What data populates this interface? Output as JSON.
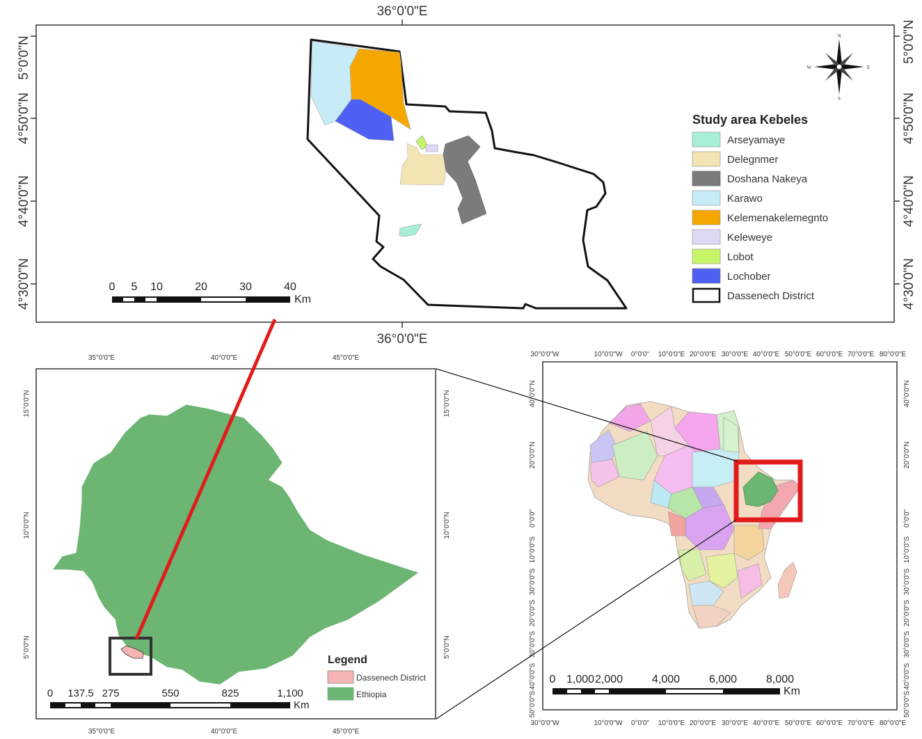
{
  "top_map": {
    "axes": {
      "top": "36°0'0\"E",
      "bottom": "36°0'0\"E",
      "left": [
        "5°0'0\"N",
        "4°50'0\"N",
        "4°40'0\"N",
        "4°30'0\"N"
      ],
      "right": [
        "5°0'0\"N",
        "4°50'0\"N",
        "4°40'0\"N",
        "4°30'0\"N"
      ]
    },
    "north_arrow": {
      "n": "N",
      "s": "S",
      "e": "E",
      "w": "W"
    },
    "legend": {
      "title": "Study area Kebeles",
      "items": [
        {
          "label": "Arseyamaye",
          "color": "#a8efd6"
        },
        {
          "label": "Delegnmer",
          "color": "#f3e4b3"
        },
        {
          "label": "Doshana Nakeya",
          "color": "#7b7b7b"
        },
        {
          "label": "Karawo",
          "color": "#c7ecf7"
        },
        {
          "label": "Kelemenakelemegnto",
          "color": "#f5a700"
        },
        {
          "label": "Keleweye",
          "color": "#dedaf5"
        },
        {
          "label": "Lobot",
          "color": "#c7f56a"
        },
        {
          "label": "Lochober",
          "color": "#4f60f5"
        },
        {
          "label": "Dassenech District",
          "color": "#ffffff"
        }
      ]
    },
    "scale": {
      "labels": [
        "0",
        "5",
        "10",
        "20",
        "30",
        "40"
      ],
      "unit": "Km"
    }
  },
  "ethiopia_map": {
    "axes": {
      "top": [
        "35°0'0\"E",
        "40°0'0\"E",
        "45°0'0\"E"
      ],
      "bottom": [
        "35°0'0\"E",
        "40°0'0\"E",
        "45°0'0\"E"
      ],
      "left": [
        "15°0'0\"N",
        "10°0'0\"N",
        "5°0'0\"N"
      ],
      "right": [
        "15°0'0\"N",
        "10°0'0\"N",
        "5°0'0\"N"
      ]
    },
    "legend": {
      "title": "Legend",
      "items": [
        {
          "label": "Dassenech District",
          "color": "#f5b5b5"
        },
        {
          "label": "Ethiopia",
          "color": "#6cb572"
        }
      ]
    },
    "scale": {
      "labels": [
        "0",
        "137.5",
        "275",
        "550",
        "825",
        "1,100"
      ],
      "unit": "Km"
    }
  },
  "africa_map": {
    "axes": {
      "top": [
        "30°0'0\"W",
        "10°0'0\"W",
        "0°0'0\"",
        "10°0'0\"E",
        "20°0'0\"E",
        "30°0'0\"E",
        "40°0'0\"E",
        "50°0'0\"E",
        "60°0'0\"E",
        "70°0'0\"E",
        "80°0'0\"E"
      ],
      "bottom": [
        "30°0'0\"W",
        "10°0'0\"W",
        "0°0'0\"",
        "10°0'0\"E",
        "20°0'0\"E",
        "30°0'0\"E",
        "40°0'0\"E",
        "50°0'0\"E",
        "60°0'0\"E",
        "70°0'0\"E",
        "80°0'0\"E"
      ],
      "left": [
        "40°0'0\"N",
        "20°0'0\"N",
        "0°0'0\"",
        "10°0'0\"S",
        "30°0'0\"S",
        "20°0'0\"S",
        "30°0'0\"S",
        "40°0'0\"S",
        "50°0'0\"S"
      ],
      "right": [
        "40°0'0\"N",
        "20°0'0\"N",
        "0°0'0\"",
        "10°0'0\"S",
        "30°0'0\"S",
        "20°0'0\"S",
        "30°0'0\"S",
        "40°0'0\"S",
        "50°0'0\"S"
      ]
    },
    "scale": {
      "labels": [
        "0",
        "1,000",
        "2,000",
        "4,000",
        "6,000",
        "8,000"
      ],
      "unit": "Km"
    }
  },
  "colors": {
    "ethiopia": "#6cb572",
    "callout": "#e11b1b",
    "frame": "#222222"
  }
}
